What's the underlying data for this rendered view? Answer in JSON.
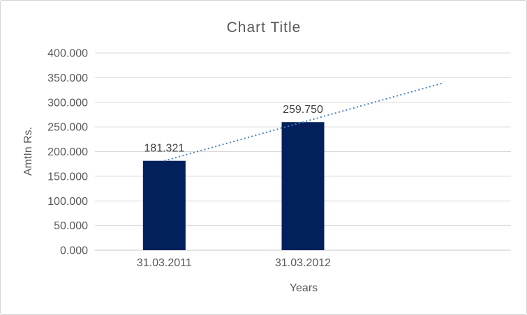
{
  "chart_data": {
    "type": "bar",
    "title": "Chart Title",
    "xlabel": "Years",
    "ylabel": "AmtIn Rs.",
    "categories": [
      "31.03.2011",
      "31.03.2012"
    ],
    "values": [
      181.321,
      259.75
    ],
    "data_labels": [
      "181.321",
      "259.750"
    ],
    "ylim": [
      0,
      400
    ],
    "ytick_step": 50,
    "ytick_labels": [
      "0.000",
      "50.000",
      "100.000",
      "150.000",
      "200.000",
      "250.000",
      "300.000",
      "350.000",
      "400.000"
    ],
    "grid": true,
    "legend": "none",
    "bar_color": "#02215C",
    "trendline": {
      "type": "linear",
      "style": "dotted",
      "color": "#4A80C8",
      "forward_periods": 1
    },
    "colors": {
      "text": "#595959",
      "data_label": "#404040",
      "gridline": "#D9D9D9",
      "axis_line": "#C8C8C8",
      "background": "#FFFFFF",
      "border": "#D4D4D4"
    }
  }
}
